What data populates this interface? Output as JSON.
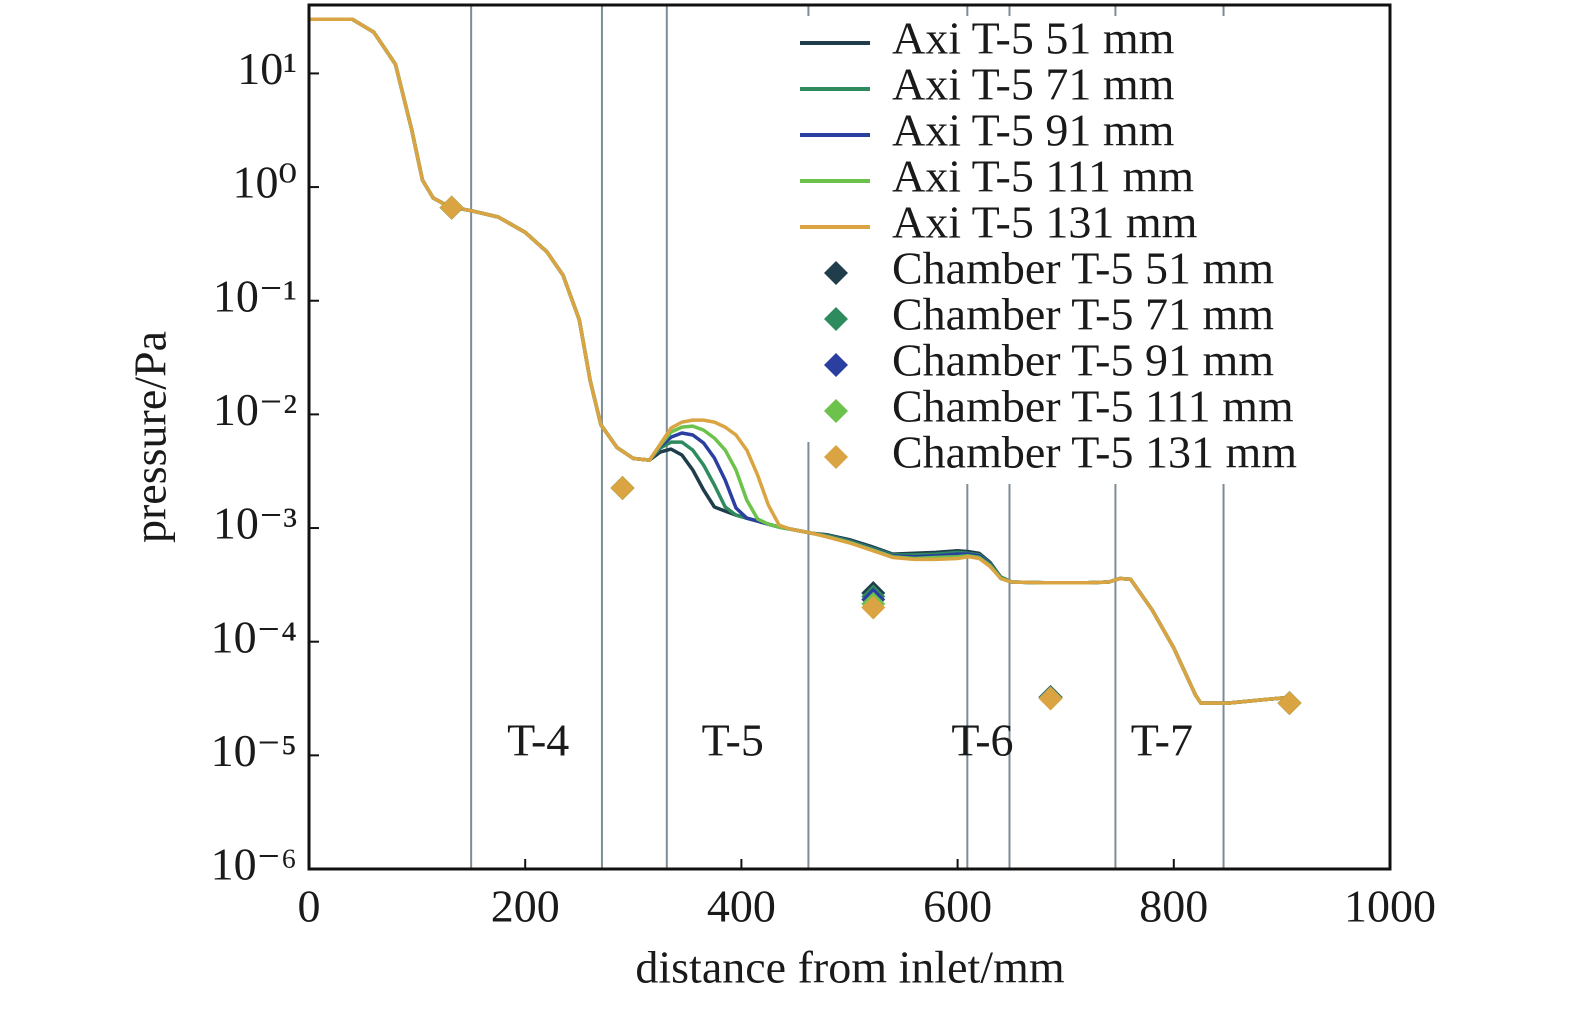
{
  "chart_data": {
    "type": "line",
    "xlabel": "distance from inlet/mm",
    "ylabel": "pressure/Pa",
    "log_y": true,
    "xlim": [
      0,
      1000
    ],
    "ylim": [
      1e-06,
      40
    ],
    "xticks": [
      0,
      200,
      400,
      600,
      800,
      1000
    ],
    "yticks": [
      {
        "value": 10,
        "label": "10¹"
      },
      {
        "value": 1,
        "label": "10⁰"
      },
      {
        "value": 0.1,
        "label": "10⁻¹"
      },
      {
        "value": 0.01,
        "label": "10⁻²"
      },
      {
        "value": 0.001,
        "label": "10⁻³"
      },
      {
        "value": 0.0001,
        "label": "10⁻⁴"
      },
      {
        "value": 1e-05,
        "label": "10⁻⁵"
      },
      {
        "value": 1e-06,
        "label": "10⁻⁶"
      }
    ],
    "section_boundaries": [
      150,
      271,
      331,
      462,
      609,
      648,
      746,
      846
    ],
    "annotations": [
      {
        "text": "T-4",
        "x": 212,
        "y": 1.23e-05
      },
      {
        "text": "T-5",
        "x": 392,
        "y": 1.23e-05
      },
      {
        "text": "T-6",
        "x": 623,
        "y": 1.23e-05
      },
      {
        "text": "T-7",
        "x": 789,
        "y": 1.23e-05
      }
    ],
    "legend": "upper right",
    "x": [
      0,
      40,
      60,
      80,
      95,
      105,
      115,
      130,
      150,
      175,
      200,
      220,
      235,
      250,
      260,
      270,
      285,
      300,
      315,
      325,
      335,
      345,
      355,
      365,
      375,
      385,
      395,
      405,
      415,
      425,
      435,
      445,
      455,
      465,
      480,
      500,
      520,
      540,
      560,
      580,
      600,
      610,
      620,
      630,
      640,
      650,
      680,
      720,
      740,
      750,
      760,
      780,
      800,
      820,
      825,
      850,
      880,
      910
    ],
    "series": [
      {
        "name": "Axi T-5 51 mm",
        "color": "#1f3d4a",
        "values": [
          30,
          30,
          23,
          12,
          3.2,
          1.15,
          0.8,
          0.67,
          0.62,
          0.545,
          0.4,
          0.27,
          0.168,
          0.068,
          0.02,
          0.0081,
          0.0051,
          0.0041,
          0.00396,
          0.00467,
          0.00495,
          0.00439,
          0.00324,
          0.00216,
          0.00153,
          0.00141,
          0.0013,
          0.00122,
          0.00115,
          0.00108,
          0.00102,
          0.00098,
          0.00094,
          0.0009,
          0.00087,
          0.00079,
          0.00069,
          0.00059,
          0.0006,
          0.00061,
          0.00063,
          0.00062,
          0.0006,
          0.0005,
          0.00037,
          0.000335,
          0.00033,
          0.00033,
          0.000335,
          0.00036,
          0.000355,
          0.00019,
          8.8e-05,
          3.4e-05,
          2.88e-05,
          2.88e-05,
          3.07e-05,
          3.26e-05
        ]
      },
      {
        "name": "Axi T-5 71 mm",
        "color": "#2e8b5e",
        "values": [
          30,
          30,
          23,
          12,
          3.2,
          1.15,
          0.8,
          0.67,
          0.62,
          0.545,
          0.4,
          0.27,
          0.168,
          0.068,
          0.02,
          0.0081,
          0.0051,
          0.0041,
          0.00396,
          0.00506,
          0.0057,
          0.0057,
          0.00485,
          0.00358,
          0.00239,
          0.00153,
          0.0013,
          0.00122,
          0.00115,
          0.00108,
          0.00102,
          0.00098,
          0.00094,
          0.0009,
          0.00086,
          0.00077,
          0.00067,
          0.00058,
          0.00058,
          0.00059,
          0.00061,
          0.0006,
          0.00058,
          0.00049,
          0.00037,
          0.000335,
          0.00033,
          0.00033,
          0.000335,
          0.00036,
          0.000355,
          0.00019,
          8.8e-05,
          3.4e-05,
          2.88e-05,
          2.88e-05,
          3.07e-05,
          3.26e-05
        ]
      },
      {
        "name": "Axi T-5 91 mm",
        "color": "#2b3fa0",
        "values": [
          30,
          30,
          23,
          12,
          3.2,
          1.15,
          0.8,
          0.67,
          0.62,
          0.545,
          0.4,
          0.27,
          0.168,
          0.068,
          0.02,
          0.0081,
          0.0051,
          0.0041,
          0.00396,
          0.00526,
          0.00631,
          0.00686,
          0.00658,
          0.0056,
          0.00413,
          0.00264,
          0.0015,
          0.00122,
          0.00115,
          0.00108,
          0.00102,
          0.00098,
          0.00094,
          0.0009,
          0.00085,
          0.00076,
          0.00066,
          0.00057,
          0.00056,
          0.00057,
          0.00059,
          0.00059,
          0.00057,
          0.00048,
          0.00036,
          0.000335,
          0.00033,
          0.00033,
          0.000335,
          0.00036,
          0.000355,
          0.00019,
          8.8e-05,
          3.4e-05,
          2.88e-05,
          2.88e-05,
          3.07e-05,
          3.26e-05
        ]
      },
      {
        "name": "Axi T-5 111 mm",
        "color": "#6cc24a",
        "values": [
          30,
          30,
          23,
          12,
          3.2,
          1.15,
          0.8,
          0.67,
          0.62,
          0.545,
          0.4,
          0.27,
          0.168,
          0.068,
          0.02,
          0.0081,
          0.0051,
          0.0041,
          0.00396,
          0.00537,
          0.007,
          0.00773,
          0.00789,
          0.00728,
          0.00619,
          0.00485,
          0.00324,
          0.00176,
          0.0012,
          0.00108,
          0.00102,
          0.00098,
          0.00094,
          0.0009,
          0.00084,
          0.00075,
          0.00065,
          0.00056,
          0.00054,
          0.00055,
          0.00056,
          0.00057,
          0.00055,
          0.00047,
          0.00036,
          0.000335,
          0.00033,
          0.00033,
          0.000335,
          0.00036,
          0.000355,
          0.00019,
          8.8e-05,
          3.4e-05,
          2.88e-05,
          2.88e-05,
          3.07e-05,
          3.26e-05
        ]
      },
      {
        "name": "Axi T-5 131 mm",
        "color": "#d9a441",
        "values": [
          30,
          30,
          23,
          12,
          3.2,
          1.15,
          0.8,
          0.67,
          0.62,
          0.545,
          0.4,
          0.27,
          0.168,
          0.068,
          0.02,
          0.0081,
          0.0051,
          0.0041,
          0.00396,
          0.00548,
          0.00759,
          0.00855,
          0.00891,
          0.00891,
          0.00855,
          0.00773,
          0.00658,
          0.00485,
          0.00292,
          0.00159,
          0.00106,
          0.00098,
          0.00094,
          0.0009,
          0.00083,
          0.00074,
          0.00064,
          0.00055,
          0.00053,
          0.00053,
          0.00054,
          0.00056,
          0.00054,
          0.00046,
          0.00036,
          0.000335,
          0.00033,
          0.00033,
          0.000335,
          0.00036,
          0.000355,
          0.00019,
          8.8e-05,
          3.4e-05,
          2.88e-05,
          2.88e-05,
          3.07e-05,
          3.26e-05
        ]
      }
    ],
    "scatter_series": [
      {
        "name": "Chamber T-5 51 mm",
        "color": "#1f3d4a",
        "x": [
          132,
          290,
          522,
          686,
          907
        ],
        "values": [
          0.66,
          0.00225,
          0.000268,
          3.26e-05,
          2.88e-05
        ]
      },
      {
        "name": "Chamber T-5 71 mm",
        "color": "#2e8b5e",
        "x": [
          132,
          290,
          522,
          686,
          907
        ],
        "values": [
          0.66,
          0.00225,
          0.00025,
          3.26e-05,
          2.88e-05
        ]
      },
      {
        "name": "Chamber T-5 91 mm",
        "color": "#2b3fa0",
        "x": [
          132,
          290,
          522,
          686,
          907
        ],
        "values": [
          0.66,
          0.00225,
          0.000235,
          3.22e-05,
          2.88e-05
        ]
      },
      {
        "name": "Chamber T-5 111 mm",
        "color": "#6cc24a",
        "x": [
          132,
          290,
          522,
          686,
          907
        ],
        "values": [
          0.66,
          0.00225,
          0.000215,
          3.19e-05,
          2.88e-05
        ]
      },
      {
        "name": "Chamber T-5 131 mm",
        "color": "#d9a441",
        "x": [
          132,
          290,
          522,
          686,
          907
        ],
        "values": [
          0.66,
          0.00225,
          0.0002,
          3.16e-05,
          2.88e-05
        ]
      }
    ]
  }
}
